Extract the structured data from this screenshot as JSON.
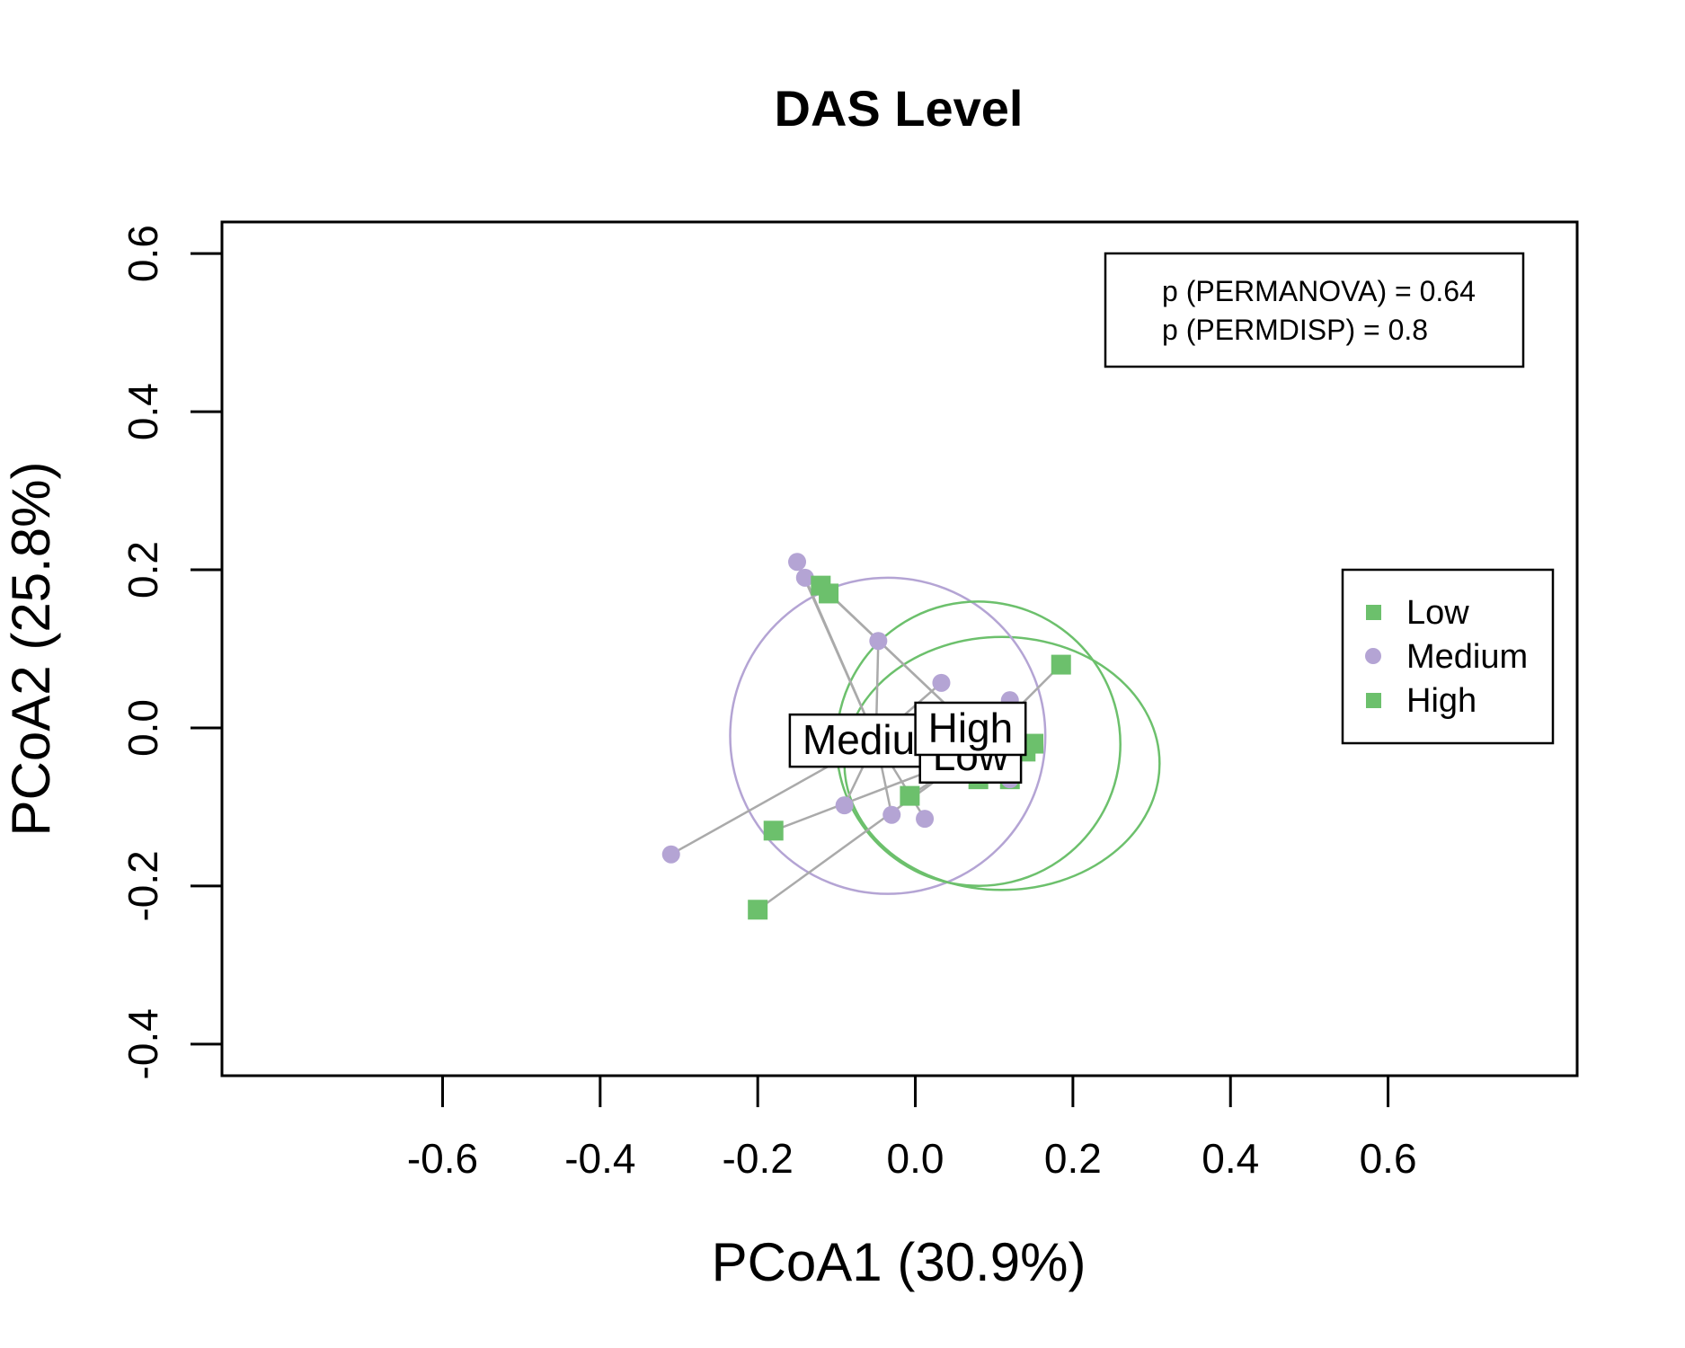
{
  "chart_data": {
    "type": "scatter",
    "title": "DAS Level",
    "xlabel": "PCoA1 (30.9%)",
    "ylabel": "PCoA2 (25.8%)",
    "xlim": [
      -0.88,
      0.84
    ],
    "ylim": [
      -0.44,
      0.64
    ],
    "x_ticks": [
      -0.6,
      -0.4,
      -0.2,
      0.0,
      0.2,
      0.4,
      0.6
    ],
    "y_ticks": [
      -0.4,
      -0.2,
      0.0,
      0.2,
      0.4,
      0.6
    ],
    "x_tick_labels": [
      "-0.6",
      "-0.4",
      "-0.2",
      "0.0",
      "0.2",
      "0.4",
      "0.6"
    ],
    "y_tick_labels": [
      "-0.4",
      "-0.2",
      "0.0",
      "0.2",
      "0.4",
      "0.6"
    ],
    "grid": false,
    "stats_box": {
      "position": "top-right",
      "lines": [
        "p (PERMANOVA) = 0.64",
        "p (PERMDISP) = 0.8"
      ]
    },
    "legend": {
      "position": "right",
      "entries": [
        {
          "label": "Low",
          "marker": "square",
          "color": "#6cc06c"
        },
        {
          "label": "Medium",
          "marker": "circle",
          "color": "#b4a4d4"
        },
        {
          "label": "High",
          "marker": "square",
          "color": "#6cc06c"
        }
      ]
    },
    "spider_color": "#aaaaaa",
    "series": [
      {
        "name": "Low",
        "marker": "square",
        "color": "#6cc06c",
        "centroid": [
          0.07,
          -0.035
        ],
        "ellipse": {
          "cx": 0.11,
          "cy": -0.045,
          "rx": 0.2,
          "ry": 0.16,
          "angle": 0
        },
        "points": [
          {
            "x": -0.2,
            "y": -0.23
          },
          {
            "x": -0.18,
            "y": -0.13
          },
          {
            "x": -0.007,
            "y": -0.086
          },
          {
            "x": 0.08,
            "y": -0.065
          },
          {
            "x": 0.12,
            "y": -0.065
          },
          {
            "x": 0.14,
            "y": -0.03
          },
          {
            "x": 0.185,
            "y": 0.08
          }
        ]
      },
      {
        "name": "Medium",
        "marker": "circle",
        "color": "#b4a4d4",
        "centroid": -0.05,
        "centroid_xy": [
          -0.05,
          -0.015
        ],
        "ellipse": {
          "cx": -0.035,
          "cy": -0.01,
          "rx": 0.2,
          "ry": 0.2,
          "angle": 0
        },
        "points": [
          {
            "x": -0.31,
            "y": -0.16
          },
          {
            "x": -0.15,
            "y": 0.21
          },
          {
            "x": -0.14,
            "y": 0.19
          },
          {
            "x": -0.09,
            "y": -0.098
          },
          {
            "x": -0.047,
            "y": 0.11
          },
          {
            "x": -0.03,
            "y": -0.11
          },
          {
            "x": 0.012,
            "y": -0.115
          },
          {
            "x": 0.033,
            "y": 0.057
          },
          {
            "x": 0.12,
            "y": 0.035
          },
          {
            "x": 0.12,
            "y": -0.065
          }
        ]
      },
      {
        "name": "High",
        "marker": "square",
        "color": "#6cc06c",
        "centroid": [
          0.07,
          0.0
        ],
        "ellipse": {
          "cx": 0.08,
          "cy": -0.02,
          "rx": 0.18,
          "ry": 0.18,
          "angle": -35
        },
        "points": [
          {
            "x": -0.12,
            "y": 0.18
          },
          {
            "x": -0.11,
            "y": 0.17
          },
          {
            "x": 0.15,
            "y": -0.02
          }
        ]
      }
    ],
    "group_labels": [
      {
        "text": "Medium",
        "x": -0.05,
        "y": -0.015
      },
      {
        "text": "Low",
        "x": 0.07,
        "y": -0.035
      },
      {
        "text": "High",
        "x": 0.07,
        "y": 0.0
      }
    ]
  }
}
